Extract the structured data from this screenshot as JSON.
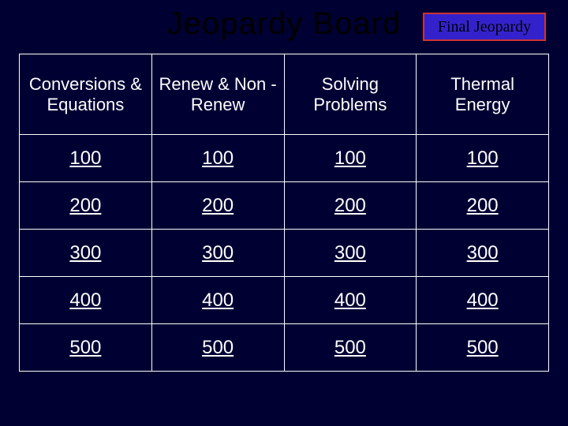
{
  "title": "Jeopardy Board",
  "final_label": "Final Jeopardy",
  "colors": {
    "background": "#000033",
    "title_text": "#000000",
    "cell_text": "#ffffff",
    "grid_border": "#ffffff",
    "final_bg": "#3322cc",
    "final_border": "#cc3333",
    "final_text": "#000000"
  },
  "typography": {
    "title_font": "Impact",
    "title_size_pt": 30,
    "category_size_pt": 16,
    "value_size_pt": 18,
    "final_font": "Times New Roman",
    "final_size_pt": 15
  },
  "board": {
    "type": "table",
    "columns": 4,
    "rows": 5,
    "categories": [
      "Conversions & Equations",
      "Renew & Non -Renew",
      "Solving Problems",
      "Thermal Energy"
    ],
    "values": [
      100,
      200,
      300,
      400,
      500
    ],
    "cell_underline": true
  }
}
